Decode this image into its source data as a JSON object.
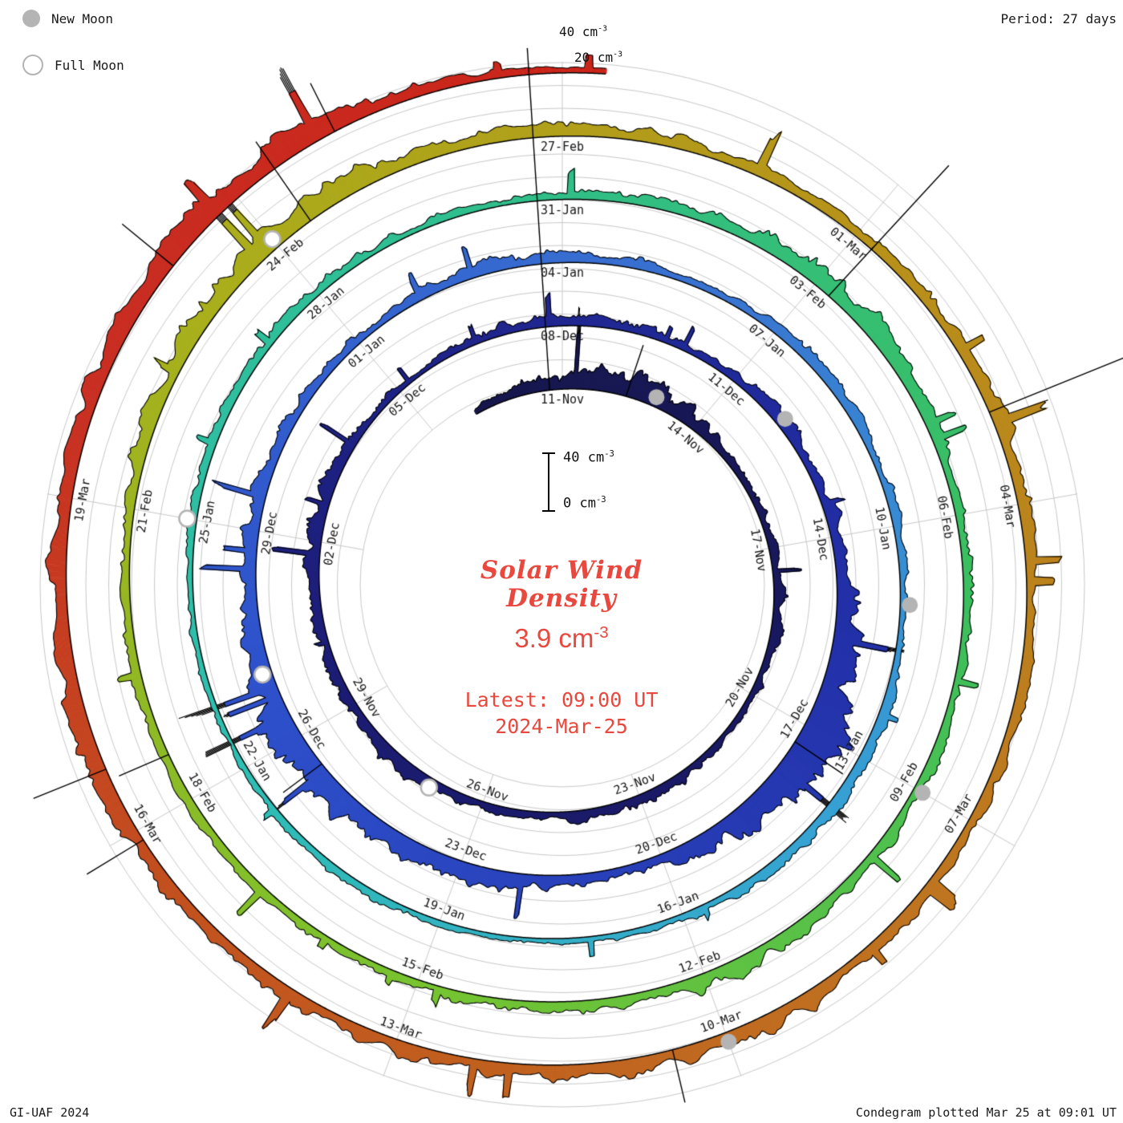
{
  "legend": {
    "new_moon_label": "New Moon",
    "full_moon_label": "Full Moon"
  },
  "period_label": "Period: 27 days",
  "footer": {
    "credit": "GI-UAF 2024",
    "plotted": "Condegram plotted Mar 25 at 09:01 UT"
  },
  "top_scale": {
    "outer": "40 cm",
    "inner": "20 cm",
    "exp": "-3"
  },
  "scalebar": {
    "top": "40 cm",
    "bottom": "0 cm",
    "exp": "-3"
  },
  "center": {
    "title_line1": "Solar Wind",
    "title_line2": "Density",
    "value": "3.9 cm",
    "exp": "-3",
    "latest1": "Latest: 09:00 UT",
    "latest2": "2024-Mar-25"
  },
  "chart_data": {
    "type": "area",
    "layout": "spiral-condegram",
    "title": "Solar Wind Density",
    "units": "cm^-3",
    "period_days": 27,
    "latest_value": 3.9,
    "latest_time_label": "2024-Mar-25 09:00 UT",
    "radial_axis": {
      "min": 0,
      "max": 40,
      "ticks": [
        0,
        20,
        40
      ]
    },
    "first_label_offset_days": 2,
    "label_interval_days": 3,
    "date_labels": [
      "11-Nov",
      "14-Nov",
      "17-Nov",
      "20-Nov",
      "23-Nov",
      "26-Nov",
      "29-Nov",
      "02-Dec",
      "05-Dec",
      "08-Dec",
      "11-Dec",
      "14-Dec",
      "17-Dec",
      "20-Dec",
      "23-Dec",
      "26-Dec",
      "29-Dec",
      "01-Jan",
      "04-Jan",
      "07-Jan",
      "10-Jan",
      "13-Jan",
      "16-Jan",
      "19-Jan",
      "22-Jan",
      "25-Jan",
      "28-Jan",
      "31-Jan",
      "03-Feb",
      "06-Feb",
      "09-Feb",
      "12-Feb",
      "15-Feb",
      "18-Feb",
      "21-Feb",
      "24-Feb",
      "27-Feb",
      "01-Mar",
      "04-Mar",
      "07-Mar",
      "10-Mar",
      "13-Mar",
      "16-Mar",
      "19-Mar"
    ],
    "daily_values": [
      6,
      9,
      14,
      22,
      18,
      12,
      8,
      6,
      7,
      9,
      8,
      6,
      5,
      7,
      10,
      9,
      7,
      8,
      11,
      13,
      10,
      8,
      9,
      12,
      11,
      8,
      6,
      7,
      9,
      11,
      9,
      8,
      9,
      11,
      9,
      11,
      16,
      26,
      34,
      28,
      18,
      13,
      10,
      12,
      15,
      19,
      22,
      24,
      21,
      17,
      14,
      11,
      9,
      8,
      10,
      11,
      9,
      8,
      7,
      9,
      10,
      8,
      7,
      6,
      8,
      10,
      11,
      9,
      7,
      5,
      5,
      6,
      7,
      6,
      5,
      5,
      6,
      7,
      8,
      9,
      8,
      7,
      6,
      7,
      8,
      11,
      15,
      17,
      11,
      8,
      9,
      8,
      8,
      10,
      12,
      13,
      11,
      9,
      8,
      7,
      8,
      9,
      8,
      8,
      10,
      13,
      17,
      21,
      17,
      13,
      10,
      11,
      9,
      8,
      10,
      11,
      13,
      10,
      8,
      10,
      11,
      13,
      15,
      13,
      11,
      13,
      11,
      10,
      13,
      17,
      15,
      13,
      15,
      18,
      22,
      18,
      10,
      4
    ],
    "spikes": [
      {
        "day": 1.72,
        "value": 285
      },
      {
        "day": 3.4,
        "value": 45
      },
      {
        "day": 38.3,
        "value": 48
      },
      {
        "day": 46.5,
        "value": 40
      },
      {
        "day": 86.2,
        "value": 55
      },
      {
        "day": 101.5,
        "value": 45
      },
      {
        "day": 107.4,
        "value": 80
      },
      {
        "day": 113.2,
        "value": 95
      },
      {
        "day": 115.1,
        "value": 130
      },
      {
        "day": 122.5,
        "value": 45
      },
      {
        "day": 127.9,
        "value": 55
      },
      {
        "day": 128.6,
        "value": 65
      },
      {
        "day": 133.2,
        "value": 55
      },
      {
        "day": 135.0,
        "value": 45
      }
    ],
    "new_moon_days": [
      4,
      33,
      63,
      92,
      122
    ],
    "full_moon_days": [
      18,
      48,
      77,
      107
    ],
    "colors": {
      "background": "#ffffff",
      "grid": "#c9c9c9",
      "outline": "#000000",
      "label_text": "#151515",
      "accent_red": "#e8483e",
      "moon": "#b4b4b4",
      "colormap_stops": [
        [
          0,
          "#18184e"
        ],
        [
          20,
          "#1d1d74"
        ],
        [
          36,
          "#2330a8"
        ],
        [
          48,
          "#2f52cc"
        ],
        [
          58,
          "#3a74d2"
        ],
        [
          66,
          "#37a3d4"
        ],
        [
          74,
          "#2fbfb4"
        ],
        [
          82,
          "#30bf8e"
        ],
        [
          90,
          "#3cbf5e"
        ],
        [
          98,
          "#78c430"
        ],
        [
          106,
          "#a9b01c"
        ],
        [
          113,
          "#b8931a"
        ],
        [
          120,
          "#bf7420"
        ],
        [
          127,
          "#c2531f"
        ],
        [
          132,
          "#c92e22"
        ],
        [
          138,
          "#cb2318"
        ]
      ]
    }
  }
}
